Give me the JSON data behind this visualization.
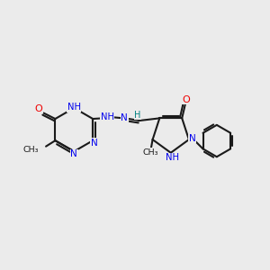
{
  "bg_color": "#ebebeb",
  "bond_color": "#1a1a1a",
  "N_color": "#0000ee",
  "O_color": "#ee0000",
  "H_color": "#008080",
  "line_width": 1.5,
  "figsize": [
    3.0,
    3.0
  ],
  "dpi": 100,
  "xlim": [
    0,
    10
  ],
  "ylim": [
    0,
    10
  ]
}
